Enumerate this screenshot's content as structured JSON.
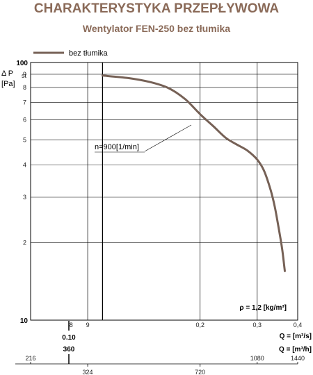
{
  "title": "CHARAKTERYSTYKA PRZEPŁYWOWA",
  "subtitle": "Wentylator FEN-250 bez tłumika",
  "rho_note": "ρ = 1,2 [kg/m³]",
  "curve_annotation": "n=900[1/min]",
  "colors": {
    "curve": "#766156",
    "title": "#8a6a58",
    "grid": "#000000"
  },
  "chart_data": {
    "type": "line",
    "title": "CHARAKTERYSTYKA PRZEPŁYWOWA",
    "subtitle": "Wentylator FEN-250 bez tłumika",
    "ylabel_symbol": "Δ P",
    "ylabel_sub": "st",
    "ylabel_unit": "[Pa]",
    "yscale": "log",
    "ylim": [
      10,
      100
    ],
    "y_major_labels": [
      "100",
      "10"
    ],
    "y_minor_labels": [
      "9",
      "8",
      "7",
      "6",
      "5",
      "4",
      "3",
      "2"
    ],
    "x_axes": {
      "q_m3s": {
        "label": "Q = [m³/s]",
        "ticks": [
          "8",
          "9",
          "0,2",
          "0,3",
          "0,4"
        ],
        "highlight": "0.10"
      },
      "q_m3h": {
        "label": "Q = [m³/h]",
        "highlight": "360",
        "ticks_top": [
          "216",
          "1080",
          "1440"
        ],
        "ticks_bottom": [
          "324",
          "720"
        ]
      }
    },
    "xlim": [
      0.06,
      0.4
    ],
    "legend": {
      "position": "top-left",
      "entries": [
        "bez tłumika"
      ]
    },
    "grid": true,
    "series": [
      {
        "name": "bez tłumika",
        "x": [
          0.1,
          0.12,
          0.14,
          0.16,
          0.18,
          0.2,
          0.22,
          0.24,
          0.26,
          0.28,
          0.3,
          0.315,
          0.33,
          0.34,
          0.35,
          0.358,
          0.365
        ],
        "y": [
          89,
          87,
          84,
          79.5,
          72,
          63,
          56.5,
          51,
          48,
          45.5,
          42,
          38,
          32,
          27.5,
          22.5,
          19,
          15.5
        ]
      }
    ]
  }
}
